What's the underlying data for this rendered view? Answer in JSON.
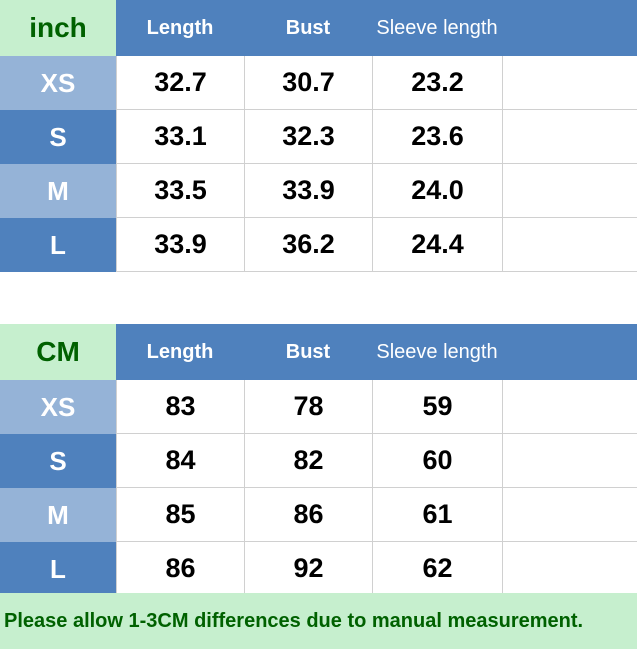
{
  "inch_table": {
    "unit": "inch",
    "headers": [
      "Length",
      "Bust",
      "Sleeve length"
    ],
    "rows": [
      {
        "size": "XS",
        "length": "32.7",
        "bust": "30.7",
        "sleeve": "23.2"
      },
      {
        "size": "S",
        "length": "33.1",
        "bust": "32.3",
        "sleeve": "23.6"
      },
      {
        "size": "M",
        "length": "33.5",
        "bust": "33.9",
        "sleeve": "24.0"
      },
      {
        "size": "L",
        "length": "33.9",
        "bust": "36.2",
        "sleeve": "24.4"
      }
    ]
  },
  "cm_table": {
    "unit": "CM",
    "headers": [
      "Length",
      "Bust",
      "Sleeve length"
    ],
    "rows": [
      {
        "size": "XS",
        "length": "83",
        "bust": "78",
        "sleeve": "59"
      },
      {
        "size": "S",
        "length": "84",
        "bust": "82",
        "sleeve": "60"
      },
      {
        "size": "M",
        "length": "85",
        "bust": "86",
        "sleeve": "61"
      },
      {
        "size": "L",
        "length": "86",
        "bust": "92",
        "sleeve": "62"
      }
    ]
  },
  "note": "Please allow 1-3CM differences due to manual measurement.",
  "colors": {
    "header_blue": "#4f81bd",
    "size_light": "#95b3d7",
    "size_dark": "#4f81bd",
    "unit_bg": "#c6efce",
    "unit_text": "#006100"
  }
}
